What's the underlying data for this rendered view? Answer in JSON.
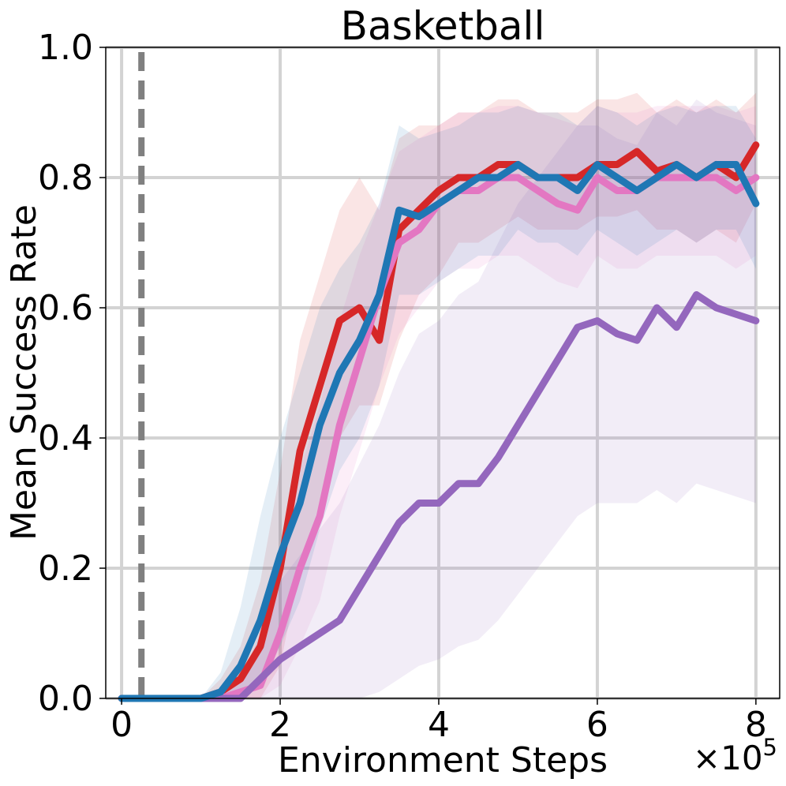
{
  "chart_data": {
    "type": "line",
    "title": "Basketball",
    "xlabel": "Environment Steps",
    "ylabel": "Mean Success Rate",
    "x_scale_base": "×10",
    "x_scale_exp": "5",
    "xlim": [
      -0.2,
      8.3
    ],
    "ylim": [
      0.0,
      1.0
    ],
    "xticks": [
      0,
      2,
      4,
      6,
      8
    ],
    "xtick_labels": [
      "0",
      "2",
      "4",
      "6",
      "8"
    ],
    "yticks": [
      0.0,
      0.2,
      0.4,
      0.6,
      0.8,
      1.0
    ],
    "ytick_labels": [
      "0.0",
      "0.2",
      "0.4",
      "0.6",
      "0.8",
      "1.0"
    ],
    "grid": true,
    "legend": "none",
    "vline": {
      "x": 0.25,
      "color": "#808080",
      "style": "dashed"
    },
    "x": [
      0,
      0.25,
      0.5,
      0.75,
      1.0,
      1.25,
      1.5,
      1.75,
      2.0,
      2.25,
      2.5,
      2.75,
      3.0,
      3.25,
      3.5,
      3.75,
      4.0,
      4.25,
      4.5,
      4.75,
      5.0,
      5.25,
      5.5,
      5.75,
      6.0,
      6.25,
      6.5,
      6.75,
      7.0,
      7.25,
      7.5,
      7.75,
      8.0
    ],
    "series": [
      {
        "color": "#d62728",
        "values": [
          0,
          0,
          0,
          0,
          0,
          0.01,
          0.03,
          0.08,
          0.2,
          0.38,
          0.48,
          0.58,
          0.6,
          0.55,
          0.72,
          0.75,
          0.78,
          0.8,
          0.8,
          0.82,
          0.82,
          0.8,
          0.8,
          0.8,
          0.82,
          0.82,
          0.84,
          0.81,
          0.82,
          0.8,
          0.82,
          0.8,
          0.85
        ],
        "band_low": [
          0,
          0,
          0,
          0,
          0,
          0,
          0,
          0,
          0.05,
          0.2,
          0.3,
          0.4,
          0.45,
          0.45,
          0.55,
          0.62,
          0.65,
          0.7,
          0.7,
          0.72,
          0.74,
          0.72,
          0.72,
          0.72,
          0.74,
          0.74,
          0.75,
          0.72,
          0.72,
          0.7,
          0.72,
          0.7,
          0.76
        ],
        "band_high": [
          0,
          0,
          0,
          0,
          0,
          0.03,
          0.08,
          0.18,
          0.35,
          0.55,
          0.65,
          0.75,
          0.8,
          0.75,
          0.86,
          0.88,
          0.88,
          0.9,
          0.9,
          0.92,
          0.92,
          0.9,
          0.9,
          0.9,
          0.92,
          0.92,
          0.93,
          0.9,
          0.92,
          0.9,
          0.92,
          0.9,
          0.93
        ]
      },
      {
        "color": "#e377c2",
        "values": [
          0,
          0,
          0,
          0,
          0,
          0,
          0.01,
          0.02,
          0.1,
          0.2,
          0.28,
          0.42,
          0.52,
          0.62,
          0.7,
          0.72,
          0.76,
          0.78,
          0.78,
          0.8,
          0.8,
          0.78,
          0.76,
          0.75,
          0.8,
          0.78,
          0.78,
          0.8,
          0.8,
          0.8,
          0.8,
          0.78,
          0.8
        ],
        "band_low": [
          0,
          0,
          0,
          0,
          0,
          0,
          0,
          0,
          0.02,
          0.08,
          0.15,
          0.28,
          0.38,
          0.48,
          0.56,
          0.6,
          0.64,
          0.66,
          0.66,
          0.68,
          0.68,
          0.66,
          0.64,
          0.63,
          0.68,
          0.66,
          0.66,
          0.68,
          0.68,
          0.68,
          0.68,
          0.66,
          0.68
        ],
        "band_high": [
          0,
          0,
          0,
          0,
          0,
          0.01,
          0.03,
          0.08,
          0.22,
          0.35,
          0.45,
          0.58,
          0.68,
          0.76,
          0.84,
          0.86,
          0.88,
          0.9,
          0.9,
          0.91,
          0.91,
          0.9,
          0.89,
          0.88,
          0.91,
          0.9,
          0.9,
          0.91,
          0.91,
          0.91,
          0.91,
          0.9,
          0.91
        ]
      },
      {
        "color": "#9467bd",
        "values": [
          0,
          0,
          0,
          0,
          0,
          0,
          0,
          0.03,
          0.06,
          0.08,
          0.1,
          0.12,
          0.17,
          0.22,
          0.27,
          0.3,
          0.3,
          0.33,
          0.33,
          0.37,
          0.42,
          0.47,
          0.52,
          0.57,
          0.58,
          0.56,
          0.55,
          0.6,
          0.57,
          0.62,
          0.6,
          0.59,
          0.58
        ],
        "band_low": [
          0,
          0,
          0,
          0,
          0,
          0,
          0,
          0,
          0,
          0,
          0,
          0,
          0,
          0.01,
          0.03,
          0.05,
          0.06,
          0.08,
          0.09,
          0.12,
          0.16,
          0.2,
          0.24,
          0.28,
          0.3,
          0.3,
          0.3,
          0.32,
          0.3,
          0.33,
          0.32,
          0.31,
          0.3
        ],
        "band_high": [
          0,
          0,
          0,
          0,
          0,
          0.01,
          0.03,
          0.1,
          0.18,
          0.22,
          0.26,
          0.3,
          0.36,
          0.42,
          0.5,
          0.56,
          0.58,
          0.62,
          0.64,
          0.7,
          0.76,
          0.8,
          0.84,
          0.88,
          0.88,
          0.86,
          0.85,
          0.9,
          0.88,
          0.92,
          0.9,
          0.89,
          0.88
        ]
      },
      {
        "color": "#1f77b4",
        "values": [
          0,
          0,
          0,
          0,
          0,
          0.01,
          0.05,
          0.12,
          0.22,
          0.3,
          0.42,
          0.5,
          0.55,
          0.62,
          0.75,
          0.74,
          0.76,
          0.78,
          0.8,
          0.8,
          0.82,
          0.8,
          0.8,
          0.78,
          0.82,
          0.8,
          0.78,
          0.8,
          0.82,
          0.8,
          0.82,
          0.82,
          0.76
        ],
        "band_low": [
          0,
          0,
          0,
          0,
          0,
          0,
          0,
          0.02,
          0.08,
          0.15,
          0.26,
          0.35,
          0.4,
          0.48,
          0.62,
          0.62,
          0.64,
          0.66,
          0.68,
          0.68,
          0.72,
          0.7,
          0.7,
          0.68,
          0.72,
          0.7,
          0.68,
          0.7,
          0.72,
          0.7,
          0.72,
          0.72,
          0.66
        ],
        "band_high": [
          0,
          0,
          0,
          0,
          0,
          0.04,
          0.14,
          0.28,
          0.4,
          0.5,
          0.6,
          0.66,
          0.7,
          0.76,
          0.88,
          0.86,
          0.87,
          0.88,
          0.9,
          0.9,
          0.91,
          0.9,
          0.9,
          0.88,
          0.91,
          0.9,
          0.88,
          0.9,
          0.91,
          0.9,
          0.91,
          0.91,
          0.86
        ]
      }
    ]
  }
}
